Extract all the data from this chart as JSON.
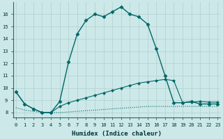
{
  "xlabel": "Humidex (Indice chaleur)",
  "bg_color": "#cce8e8",
  "grid_color": "#b0d0d0",
  "line_color": "#006666",
  "x_ticks": [
    0,
    1,
    2,
    3,
    4,
    5,
    6,
    7,
    8,
    9,
    10,
    11,
    12,
    13,
    14,
    15,
    16,
    17,
    18,
    19,
    20,
    21,
    22,
    23
  ],
  "y_ticks": [
    8,
    9,
    10,
    11,
    12,
    13,
    14,
    15,
    16
  ],
  "ylim": [
    7.6,
    17.0
  ],
  "xlim": [
    -0.3,
    23.3
  ],
  "series": [
    {
      "x": [
        0,
        1,
        2,
        3,
        4,
        5,
        6,
        7,
        8,
        9,
        10,
        11,
        12,
        13,
        14,
        15,
        16,
        17,
        18,
        19,
        20,
        21,
        22,
        23
      ],
      "y": [
        9.7,
        8.7,
        8.3,
        8.0,
        8.0,
        8.9,
        12.1,
        14.4,
        15.5,
        16.0,
        15.8,
        16.2,
        16.6,
        16.0,
        15.8,
        15.2,
        13.2,
        11.0,
        8.8,
        8.8,
        8.9,
        8.7,
        8.7,
        8.7
      ],
      "linestyle": "-",
      "marker": "D",
      "markersize": 2.5,
      "linewidth": 1.0
    },
    {
      "x": [
        0,
        1,
        2,
        3,
        4,
        5,
        6,
        7,
        8,
        9,
        10,
        11,
        12,
        13,
        14,
        15,
        16,
        17,
        18,
        19,
        20,
        21,
        22,
        23
      ],
      "y": [
        9.7,
        8.7,
        8.3,
        8.0,
        8.0,
        8.5,
        8.8,
        9.0,
        9.2,
        9.4,
        9.6,
        9.8,
        10.0,
        10.2,
        10.4,
        10.5,
        10.6,
        10.7,
        10.6,
        8.8,
        8.85,
        8.9,
        8.85,
        8.85
      ],
      "linestyle": "-",
      "marker": "D",
      "markersize": 2.0,
      "linewidth": 0.8
    },
    {
      "x": [
        0,
        1,
        2,
        3,
        4,
        5,
        6,
        7,
        8,
        9,
        10,
        11,
        12,
        13,
        14,
        15,
        16,
        17,
        18,
        19,
        20,
        21,
        22,
        23
      ],
      "y": [
        8.4,
        8.2,
        8.1,
        8.0,
        8.0,
        8.0,
        8.05,
        8.1,
        8.15,
        8.2,
        8.25,
        8.3,
        8.35,
        8.4,
        8.45,
        8.5,
        8.5,
        8.5,
        8.5,
        8.5,
        8.5,
        8.5,
        8.5,
        8.5
      ],
      "linestyle": ":",
      "marker": null,
      "markersize": 0,
      "linewidth": 0.8
    }
  ]
}
